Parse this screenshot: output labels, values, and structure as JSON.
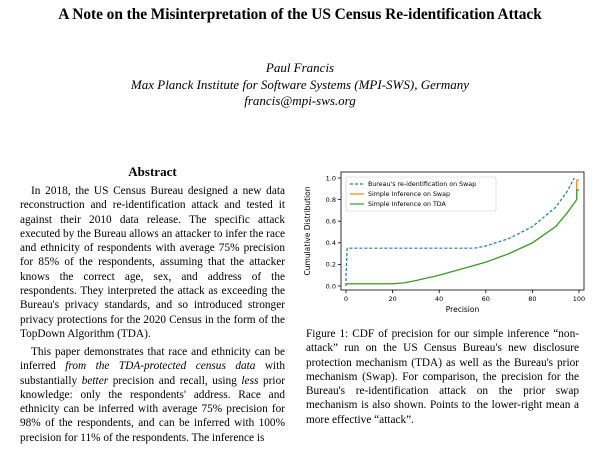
{
  "paper": {
    "title": "A Note on the Misinterpretation of the US Census Re-identification Attack",
    "author": "Paul Francis",
    "affiliation": "Max Planck Institute for Software Systems (MPI-SWS), Germany",
    "email": "francis@mpi-sws.org"
  },
  "abstract": {
    "heading": "Abstract",
    "p1": "In 2018, the US Census Bureau designed a new data reconstruction and re-identification attack and tested it against their 2010 data release. The specific attack executed by the Bureau allows an attacker to infer the race and ethnicity of respondents with average 75% precision for 85% of the respondents, assuming that the attacker knows the correct age, sex, and address of the respondents. They interpreted the attack as exceeding the Bureau's privacy standards, and so introduced stronger privacy protections for the 2020 Census in the form of the TopDown Algorithm (TDA).",
    "p2_a": "This paper demonstrates that race and ethnicity can be inferred ",
    "p2_b": "from the TDA-protected census data",
    "p2_c": " with substantially ",
    "p2_d": "better",
    "p2_e": " precision and recall, using ",
    "p2_f": "less",
    "p2_g": " prior knowledge: only the respondents' address. Race and ethnicity can be inferred with average 75% precision for 98% of the respondents, and can be inferred with 100% precision for 11% of the respondents. The inference is"
  },
  "figure": {
    "caption": "Figure 1: CDF of precision for our simple inference “non-attack” run on the US Census Bureau's new disclosure protection mechanism (TDA) as well as the Bureau's prior mechanism (Swap). For comparison, the precision for the Bureau's re-identification attack on the prior swap mechanism is also shown. Points to the lower-right mean a more effective “attack”."
  },
  "chart_data": {
    "type": "line",
    "xlabel": "Precision",
    "ylabel": "Cumulative Distribution",
    "xlim": [
      0,
      100
    ],
    "ylim": [
      0,
      1
    ],
    "xticks": [
      0,
      20,
      40,
      60,
      80,
      100
    ],
    "yticks": [
      0.0,
      0.2,
      0.4,
      0.6,
      0.8,
      1.0
    ],
    "grid": false,
    "legend_position": "top-left",
    "series": [
      {
        "name": "Bureau's re-identification on Swap",
        "color": "#1f77b4",
        "dash": true,
        "x": [
          0,
          0,
          0.5,
          10,
          30,
          50,
          55,
          60,
          70,
          80,
          90,
          95,
          98
        ],
        "y": [
          0.0,
          0.1,
          0.35,
          0.35,
          0.35,
          0.35,
          0.35,
          0.37,
          0.44,
          0.55,
          0.73,
          0.88,
          1.0
        ]
      },
      {
        "name": "Simple Inference on Swap",
        "color": "#ff7f0e",
        "dash": false,
        "x": [
          0,
          10,
          20,
          25,
          30,
          40,
          50,
          60,
          70,
          80,
          90,
          95,
          99,
          99,
          100
        ],
        "y": [
          0.02,
          0.02,
          0.02,
          0.03,
          0.05,
          0.1,
          0.16,
          0.22,
          0.3,
          0.4,
          0.55,
          0.68,
          0.8,
          0.98,
          0.98
        ]
      },
      {
        "name": "Simple Inference on TDA",
        "color": "#2ca02c",
        "dash": false,
        "x": [
          0,
          10,
          20,
          25,
          30,
          40,
          50,
          60,
          70,
          80,
          90,
          95,
          99,
          99,
          100
        ],
        "y": [
          0.02,
          0.02,
          0.02,
          0.03,
          0.05,
          0.1,
          0.16,
          0.22,
          0.3,
          0.4,
          0.55,
          0.68,
          0.8,
          0.89,
          0.89
        ]
      }
    ]
  }
}
